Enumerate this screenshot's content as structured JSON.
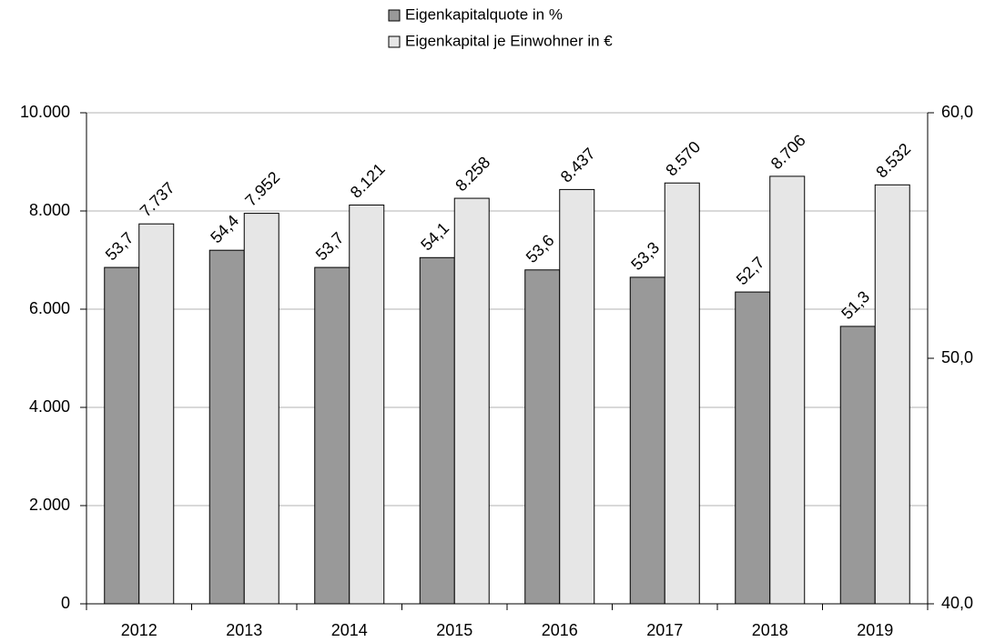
{
  "chart_data": {
    "type": "bar",
    "categories": [
      "2012",
      "2013",
      "2014",
      "2015",
      "2016",
      "2017",
      "2018",
      "2019"
    ],
    "series": [
      {
        "name": "Eigenkapitalquote in %",
        "color": "#999999",
        "axis": "y2",
        "values": [
          53.7,
          54.4,
          53.7,
          54.1,
          53.6,
          53.3,
          52.7,
          51.3
        ],
        "value_labels": [
          "53,7",
          "54,4",
          "53,7",
          "54,1",
          "53,6",
          "53,3",
          "52,7",
          "51,3"
        ]
      },
      {
        "name": "Eigenkapital je Einwohner in €",
        "color": "#e6e6e6",
        "values": [
          7737,
          7952,
          8121,
          8258,
          8437,
          8570,
          8706,
          8532
        ],
        "value_labels": [
          "7.737",
          "7.952",
          "8.121",
          "8.258",
          "8.437",
          "8.570",
          "8.706",
          "8.532"
        ]
      }
    ],
    "ylim": [
      0,
      10000
    ],
    "yticks": [
      0,
      {
        "value": 2000,
        "label": "2.000"
      },
      {
        "value": 4000,
        "label": "4.000"
      },
      {
        "value": 6000,
        "label": "6.000"
      },
      {
        "value": 8000,
        "label": "8.000"
      },
      {
        "value": 10000,
        "label": "10.000"
      }
    ],
    "y2lim": [
      40,
      60
    ],
    "y2ticks": [
      {
        "value": 40,
        "label": "40,0"
      },
      {
        "value": 50,
        "label": "50,0"
      },
      {
        "value": 60,
        "label": "60,0"
      }
    ],
    "grid": true,
    "legend": "top"
  }
}
